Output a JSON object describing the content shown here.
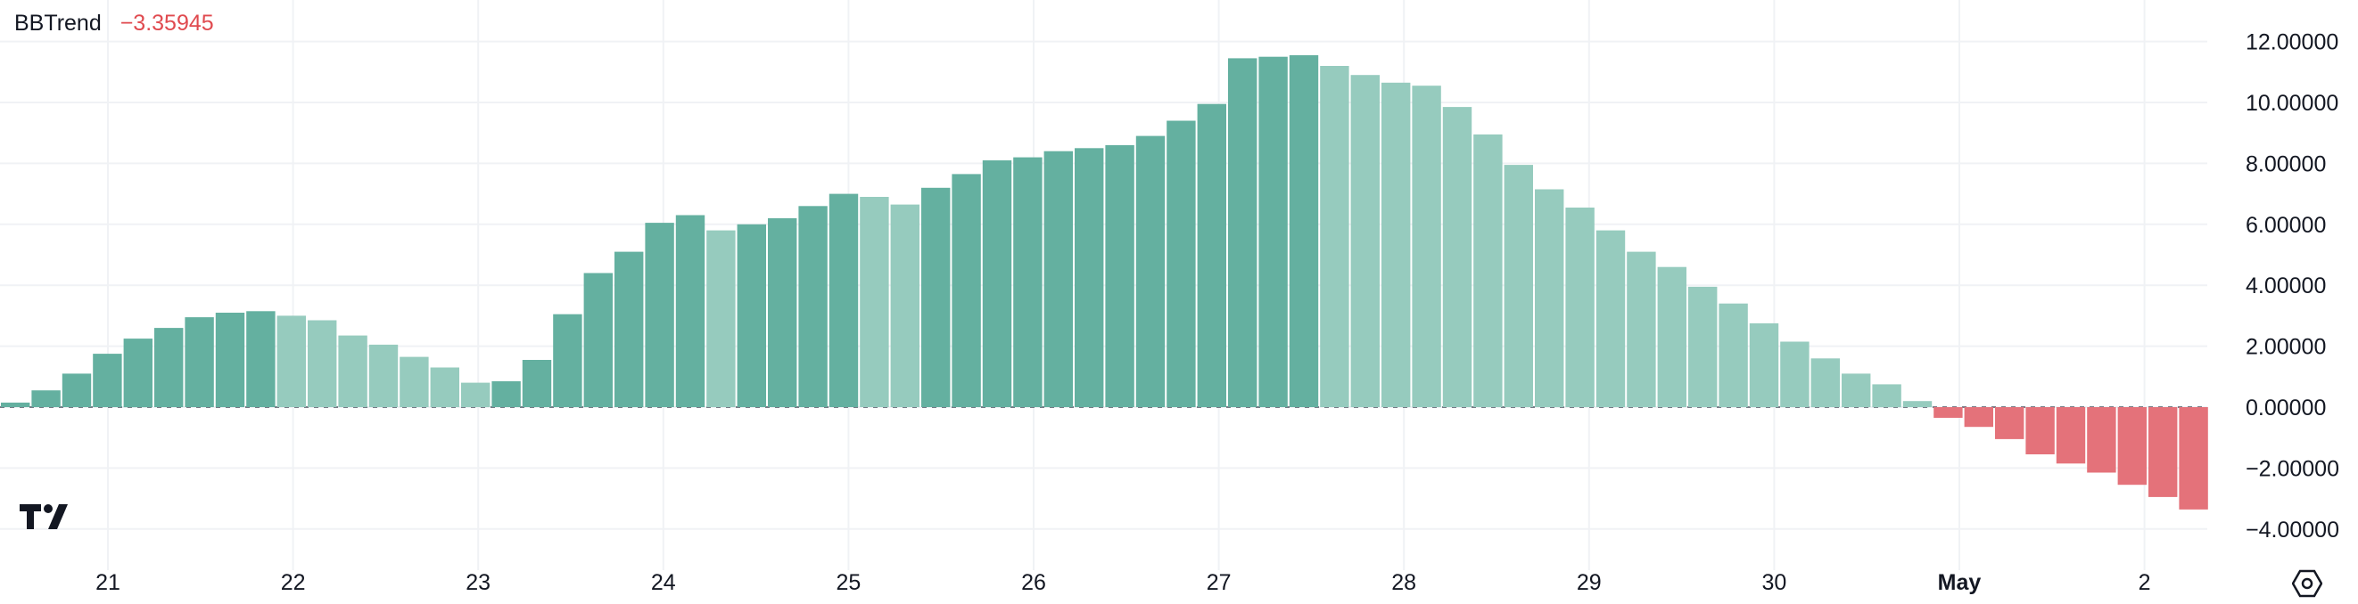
{
  "legend": {
    "indicator_name": "BBTrend",
    "current_value": "−3.35945",
    "value_color": "#e04a4f"
  },
  "chart_data": {
    "type": "bar",
    "title": "BBTrend",
    "y_tick_labels": [
      "12.00000",
      "10.00000",
      "8.00000",
      "6.00000",
      "4.00000",
      "2.00000",
      "0.00000",
      "−2.00000",
      "−4.00000"
    ],
    "y_tick_values": [
      12,
      10,
      8,
      6,
      4,
      2,
      0,
      -2,
      -4
    ],
    "ylim": [
      -4.8,
      13.0
    ],
    "x_tick_labels": [
      "21",
      "22",
      "23",
      "24",
      "25",
      "26",
      "27",
      "28",
      "29",
      "30",
      "May",
      "2"
    ],
    "x_tick_bold": [
      false,
      false,
      false,
      false,
      false,
      false,
      false,
      false,
      false,
      false,
      true,
      false
    ],
    "values": [
      0.15,
      0.55,
      1.1,
      1.75,
      2.25,
      2.6,
      2.95,
      3.1,
      3.15,
      3.0,
      2.85,
      2.35,
      2.05,
      1.65,
      1.3,
      0.8,
      0.85,
      1.55,
      3.05,
      4.4,
      5.1,
      6.05,
      6.3,
      5.8,
      6.0,
      6.2,
      6.6,
      7.0,
      6.9,
      6.65,
      7.2,
      7.65,
      8.1,
      8.2,
      8.4,
      8.5,
      8.6,
      8.9,
      9.4,
      9.95,
      11.45,
      11.5,
      11.55,
      11.2,
      10.9,
      10.65,
      10.55,
      9.85,
      8.95,
      7.95,
      7.15,
      6.55,
      5.8,
      5.1,
      4.6,
      3.95,
      3.4,
      2.75,
      2.15,
      1.6,
      1.1,
      0.75,
      0.2,
      -0.35,
      -0.65,
      -1.05,
      -1.55,
      -1.85,
      -2.15,
      -2.55,
      -2.95,
      -3.36
    ],
    "bar_colors": {
      "positive_rising": "#64b0a0",
      "positive_falling": "#96cbbe",
      "negative": "#e4727a"
    },
    "grid": true,
    "zero_line": "dashed"
  },
  "icons": {
    "brand_logo": "tradingview-logo",
    "settings": "gear-icon"
  }
}
